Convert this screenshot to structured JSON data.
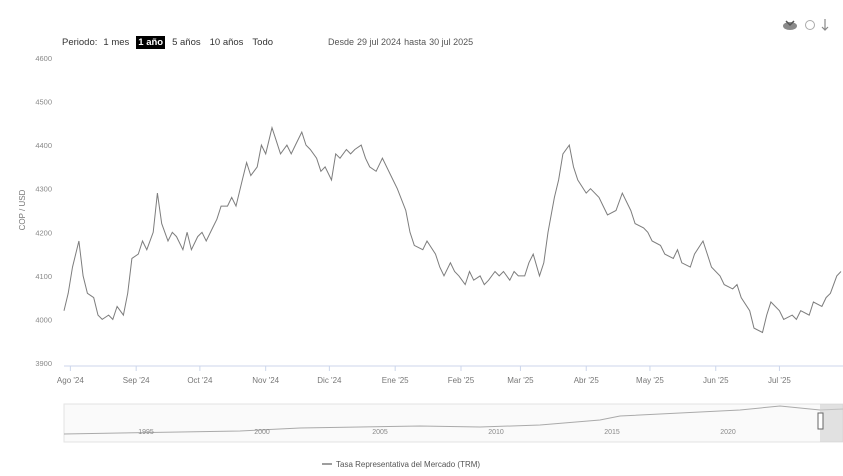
{
  "toolbar": {
    "period_label": "Periodo:",
    "ranges": [
      "1 mes",
      "1 año",
      "5 años",
      "10 años",
      "Todo"
    ],
    "active_range": 1
  },
  "date_range": {
    "from_label": "Desde",
    "from": "29 jul 2024",
    "to_label": "hasta",
    "to": "30 jul 2025"
  },
  "icons": {
    "download": "download-icon",
    "export": "export-icon"
  },
  "navigator": {
    "labels": [
      "1995",
      "2000",
      "2005",
      "2010",
      "2015",
      "2020"
    ]
  },
  "legend": {
    "series_label": "Tasa Representativa del Mercado (TRM)",
    "color": "#7d7d7d"
  },
  "chart_data": {
    "type": "line",
    "title": "",
    "xlabel": "",
    "ylabel": "COP / USD",
    "ylim": [
      3900,
      4600
    ],
    "yticks": [
      3900,
      4000,
      4100,
      4200,
      4300,
      4400,
      4500,
      4600
    ],
    "xticks": [
      {
        "date": "2024-08-01",
        "label": "Ago '24"
      },
      {
        "date": "2024-09-01",
        "label": "Sep '24"
      },
      {
        "date": "2024-10-01",
        "label": "Oct '24"
      },
      {
        "date": "2024-11-01",
        "label": "Nov '24"
      },
      {
        "date": "2024-12-01",
        "label": "Dic '24"
      },
      {
        "date": "2025-01-01",
        "label": "Ene '25"
      },
      {
        "date": "2025-02-01",
        "label": "Feb '25"
      },
      {
        "date": "2025-03-01",
        "label": "Mar '25"
      },
      {
        "date": "2025-04-01",
        "label": "Abr '25"
      },
      {
        "date": "2025-05-01",
        "label": "May '25"
      },
      {
        "date": "2025-06-01",
        "label": "Jun '25"
      },
      {
        "date": "2025-07-01",
        "label": "Jul '25"
      }
    ],
    "xrange": [
      "2024-07-29",
      "2025-07-30"
    ],
    "grid": false,
    "legend_position": "bottom",
    "series": [
      {
        "name": "Tasa Representativa del Mercado (TRM)",
        "color": "#7d7d7d",
        "points": [
          [
            "2024-07-29",
            4020
          ],
          [
            "2024-07-31",
            4060
          ],
          [
            "2024-08-02",
            4120
          ],
          [
            "2024-08-05",
            4180
          ],
          [
            "2024-08-07",
            4100
          ],
          [
            "2024-08-09",
            4060
          ],
          [
            "2024-08-12",
            4050
          ],
          [
            "2024-08-14",
            4010
          ],
          [
            "2024-08-16",
            4000
          ],
          [
            "2024-08-19",
            4010
          ],
          [
            "2024-08-21",
            4000
          ],
          [
            "2024-08-23",
            4030
          ],
          [
            "2024-08-26",
            4010
          ],
          [
            "2024-08-28",
            4060
          ],
          [
            "2024-08-30",
            4140
          ],
          [
            "2024-09-02",
            4150
          ],
          [
            "2024-09-04",
            4180
          ],
          [
            "2024-09-06",
            4160
          ],
          [
            "2024-09-09",
            4200
          ],
          [
            "2024-09-11",
            4290
          ],
          [
            "2024-09-13",
            4220
          ],
          [
            "2024-09-16",
            4180
          ],
          [
            "2024-09-18",
            4200
          ],
          [
            "2024-09-20",
            4190
          ],
          [
            "2024-09-23",
            4160
          ],
          [
            "2024-09-25",
            4200
          ],
          [
            "2024-09-27",
            4160
          ],
          [
            "2024-09-30",
            4190
          ],
          [
            "2024-10-02",
            4200
          ],
          [
            "2024-10-04",
            4180
          ],
          [
            "2024-10-07",
            4210
          ],
          [
            "2024-10-09",
            4230
          ],
          [
            "2024-10-11",
            4260
          ],
          [
            "2024-10-14",
            4260
          ],
          [
            "2024-10-16",
            4280
          ],
          [
            "2024-10-18",
            4260
          ],
          [
            "2024-10-21",
            4320
          ],
          [
            "2024-10-23",
            4360
          ],
          [
            "2024-10-25",
            4330
          ],
          [
            "2024-10-28",
            4350
          ],
          [
            "2024-10-30",
            4400
          ],
          [
            "2024-11-01",
            4380
          ],
          [
            "2024-11-04",
            4440
          ],
          [
            "2024-11-06",
            4410
          ],
          [
            "2024-11-08",
            4380
          ],
          [
            "2024-11-11",
            4400
          ],
          [
            "2024-11-13",
            4380
          ],
          [
            "2024-11-15",
            4400
          ],
          [
            "2024-11-18",
            4430
          ],
          [
            "2024-11-20",
            4400
          ],
          [
            "2024-11-22",
            4390
          ],
          [
            "2024-11-25",
            4370
          ],
          [
            "2024-11-27",
            4340
          ],
          [
            "2024-11-29",
            4350
          ],
          [
            "2024-12-02",
            4320
          ],
          [
            "2024-12-04",
            4380
          ],
          [
            "2024-12-06",
            4370
          ],
          [
            "2024-12-09",
            4390
          ],
          [
            "2024-12-11",
            4380
          ],
          [
            "2024-12-13",
            4390
          ],
          [
            "2024-12-16",
            4400
          ],
          [
            "2024-12-18",
            4370
          ],
          [
            "2024-12-20",
            4350
          ],
          [
            "2024-12-23",
            4340
          ],
          [
            "2024-12-26",
            4370
          ],
          [
            "2024-12-30",
            4330
          ],
          [
            "2025-01-02",
            4300
          ],
          [
            "2025-01-06",
            4250
          ],
          [
            "2025-01-08",
            4200
          ],
          [
            "2025-01-10",
            4170
          ],
          [
            "2025-01-14",
            4160
          ],
          [
            "2025-01-16",
            4180
          ],
          [
            "2025-01-20",
            4150
          ],
          [
            "2025-01-22",
            4120
          ],
          [
            "2025-01-24",
            4100
          ],
          [
            "2025-01-27",
            4130
          ],
          [
            "2025-01-29",
            4110
          ],
          [
            "2025-01-31",
            4100
          ],
          [
            "2025-02-03",
            4080
          ],
          [
            "2025-02-05",
            4110
          ],
          [
            "2025-02-07",
            4090
          ],
          [
            "2025-02-10",
            4100
          ],
          [
            "2025-02-12",
            4080
          ],
          [
            "2025-02-14",
            4090
          ],
          [
            "2025-02-17",
            4110
          ],
          [
            "2025-02-19",
            4100
          ],
          [
            "2025-02-21",
            4110
          ],
          [
            "2025-02-24",
            4090
          ],
          [
            "2025-02-26",
            4110
          ],
          [
            "2025-02-28",
            4100
          ],
          [
            "2025-03-03",
            4100
          ],
          [
            "2025-03-05",
            4130
          ],
          [
            "2025-03-07",
            4150
          ],
          [
            "2025-03-10",
            4100
          ],
          [
            "2025-03-12",
            4130
          ],
          [
            "2025-03-14",
            4200
          ],
          [
            "2025-03-17",
            4280
          ],
          [
            "2025-03-19",
            4320
          ],
          [
            "2025-03-21",
            4380
          ],
          [
            "2025-03-24",
            4400
          ],
          [
            "2025-03-26",
            4350
          ],
          [
            "2025-03-28",
            4320
          ],
          [
            "2025-04-01",
            4290
          ],
          [
            "2025-04-03",
            4300
          ],
          [
            "2025-04-07",
            4280
          ],
          [
            "2025-04-09",
            4260
          ],
          [
            "2025-04-11",
            4240
          ],
          [
            "2025-04-15",
            4250
          ],
          [
            "2025-04-18",
            4290
          ],
          [
            "2025-04-22",
            4250
          ],
          [
            "2025-04-24",
            4220
          ],
          [
            "2025-04-28",
            4210
          ],
          [
            "2025-04-30",
            4200
          ],
          [
            "2025-05-02",
            4180
          ],
          [
            "2025-05-06",
            4170
          ],
          [
            "2025-05-08",
            4150
          ],
          [
            "2025-05-12",
            4140
          ],
          [
            "2025-05-14",
            4160
          ],
          [
            "2025-05-16",
            4130
          ],
          [
            "2025-05-20",
            4120
          ],
          [
            "2025-05-22",
            4150
          ],
          [
            "2025-05-26",
            4180
          ],
          [
            "2025-05-28",
            4150
          ],
          [
            "2025-05-30",
            4120
          ],
          [
            "2025-06-03",
            4100
          ],
          [
            "2025-06-05",
            4080
          ],
          [
            "2025-06-09",
            4070
          ],
          [
            "2025-06-11",
            4080
          ],
          [
            "2025-06-13",
            4050
          ],
          [
            "2025-06-17",
            4020
          ],
          [
            "2025-06-19",
            3980
          ],
          [
            "2025-06-23",
            3970
          ],
          [
            "2025-06-25",
            4010
          ],
          [
            "2025-06-27",
            4040
          ],
          [
            "2025-07-01",
            4020
          ],
          [
            "2025-07-03",
            4000
          ],
          [
            "2025-07-07",
            4010
          ],
          [
            "2025-07-09",
            4000
          ],
          [
            "2025-07-11",
            4020
          ],
          [
            "2025-07-15",
            4010
          ],
          [
            "2025-07-17",
            4040
          ],
          [
            "2025-07-21",
            4030
          ],
          [
            "2025-07-23",
            4050
          ],
          [
            "2025-07-25",
            4060
          ],
          [
            "2025-07-28",
            4100
          ],
          [
            "2025-07-30",
            4110
          ]
        ]
      }
    ]
  }
}
